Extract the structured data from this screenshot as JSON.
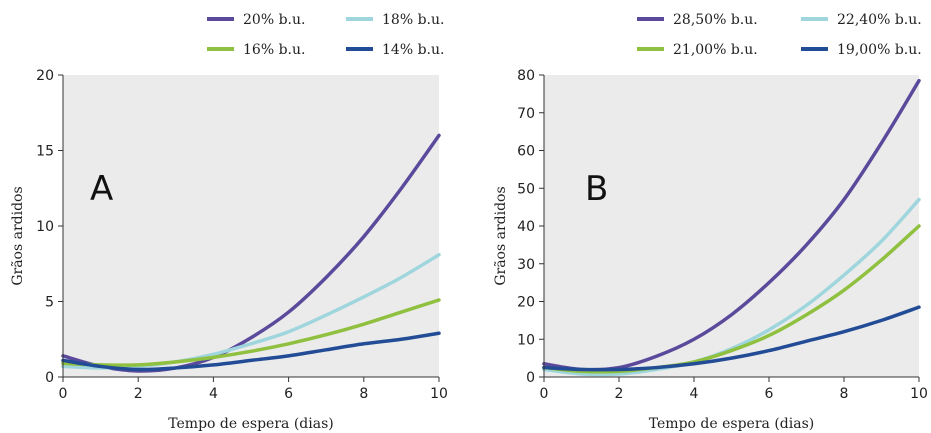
{
  "chart_data": [
    {
      "type": "line",
      "panel_label": "A",
      "xlabel": "Tempo de espera (dias)",
      "ylabel": "Grãos ardidos",
      "xlim": [
        0,
        10
      ],
      "ylim": [
        0,
        20
      ],
      "xticks": [
        "0",
        "2",
        "4",
        "6",
        "8",
        "10"
      ],
      "yticks": [
        "0",
        "5",
        "10",
        "15",
        "20"
      ],
      "legend_position": "top",
      "grid": false,
      "background": "#ebebeb",
      "series": [
        {
          "name": "20% b.u.",
          "color": "#5b4a9b",
          "x": [
            0,
            1,
            2,
            3,
            4,
            5,
            6,
            7,
            8,
            9,
            10
          ],
          "values": [
            1.4,
            0.7,
            0.4,
            0.6,
            1.3,
            2.6,
            4.3,
            6.6,
            9.3,
            12.5,
            16.0
          ]
        },
        {
          "name": "18% b.u.",
          "color": "#9fd6dd",
          "x": [
            0,
            1,
            2,
            3,
            4,
            5,
            6,
            7,
            8,
            9,
            10
          ],
          "values": [
            0.7,
            0.6,
            0.7,
            1.0,
            1.5,
            2.2,
            3.0,
            4.1,
            5.3,
            6.6,
            8.1
          ]
        },
        {
          "name": "16% b.u.",
          "color": "#8fc03f",
          "x": [
            0,
            1,
            2,
            3,
            4,
            5,
            6,
            7,
            8,
            9,
            10
          ],
          "values": [
            0.9,
            0.8,
            0.8,
            1.0,
            1.3,
            1.7,
            2.2,
            2.8,
            3.5,
            4.3,
            5.1
          ]
        },
        {
          "name": "14% b.u.",
          "color": "#234c96",
          "x": [
            0,
            1,
            2,
            3,
            4,
            5,
            6,
            7,
            8,
            9,
            10
          ],
          "values": [
            1.1,
            0.7,
            0.5,
            0.6,
            0.8,
            1.1,
            1.4,
            1.8,
            2.2,
            2.5,
            2.9
          ]
        }
      ]
    },
    {
      "type": "line",
      "panel_label": "B",
      "xlabel": "Tempo de espera (dias)",
      "ylabel": "Grãos ardidos",
      "xlim": [
        0,
        10
      ],
      "ylim": [
        0,
        80
      ],
      "xticks": [
        "0",
        "2",
        "4",
        "6",
        "8",
        "10"
      ],
      "yticks": [
        "0",
        "10",
        "20",
        "30",
        "40",
        "50",
        "60",
        "70",
        "80"
      ],
      "legend_position": "top",
      "grid": false,
      "background": "#ebebeb",
      "series": [
        {
          "name": "28,50% b.u.",
          "color": "#5b4a9b",
          "x": [
            0,
            1,
            2,
            3,
            4,
            5,
            6,
            7,
            8,
            9,
            10
          ],
          "values": [
            3.5,
            2.0,
            2.5,
            5.5,
            10.0,
            16.5,
            25.0,
            35.0,
            47.0,
            62.0,
            78.5
          ]
        },
        {
          "name": "22,40% b.u.",
          "color": "#9fd6dd",
          "x": [
            0,
            1,
            2,
            3,
            4,
            5,
            6,
            7,
            8,
            9,
            10
          ],
          "values": [
            2.0,
            0.8,
            0.8,
            2.0,
            4.0,
            7.5,
            12.5,
            19.0,
            27.0,
            36.0,
            47.0
          ]
        },
        {
          "name": "21,00% b.u.",
          "color": "#8fc03f",
          "x": [
            0,
            1,
            2,
            3,
            4,
            5,
            6,
            7,
            8,
            9,
            10
          ],
          "values": [
            2.5,
            1.5,
            1.5,
            2.5,
            4.0,
            7.0,
            11.0,
            16.5,
            23.0,
            31.0,
            40.0
          ]
        },
        {
          "name": "19,00% b.u.",
          "color": "#234c96",
          "x": [
            0,
            1,
            2,
            3,
            4,
            5,
            6,
            7,
            8,
            9,
            10
          ],
          "values": [
            2.5,
            2.0,
            2.0,
            2.5,
            3.5,
            5.0,
            7.0,
            9.5,
            12.0,
            15.0,
            18.5
          ]
        }
      ]
    }
  ]
}
